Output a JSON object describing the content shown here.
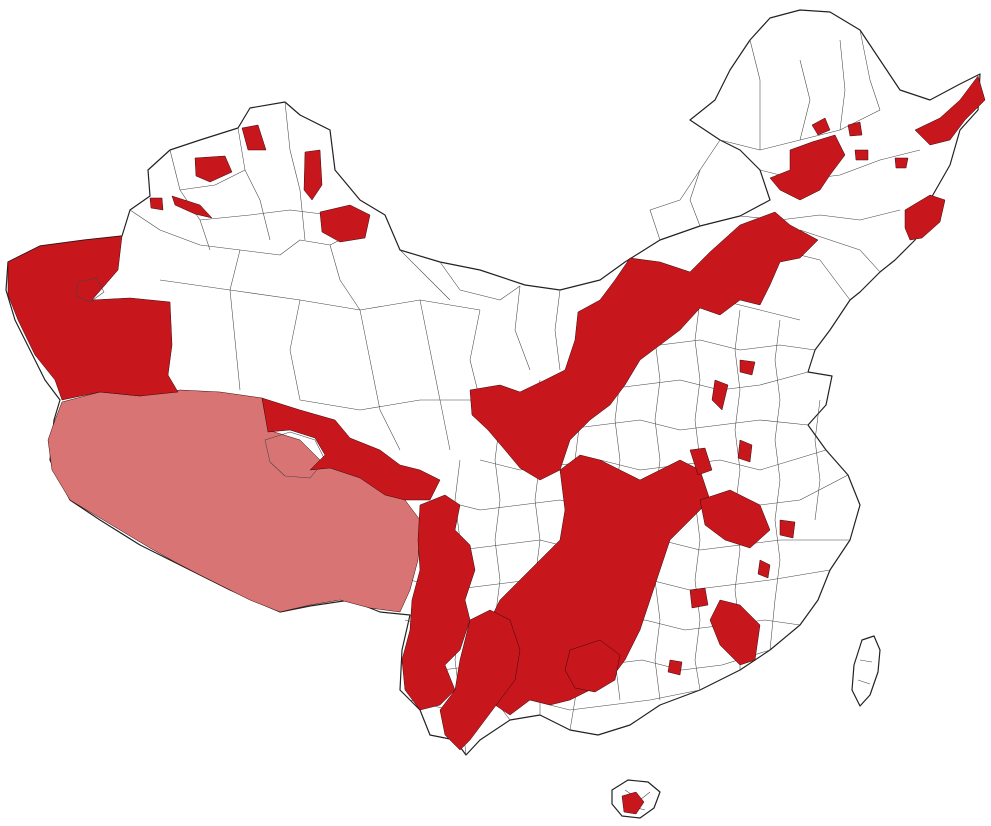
{
  "map": {
    "colors": {
      "background": "#ffffff",
      "region_fill": "#ffffff",
      "border": "#222222",
      "highlight": "#c8161d",
      "highlight_light": "#d97474"
    },
    "legend": [],
    "title": ""
  }
}
